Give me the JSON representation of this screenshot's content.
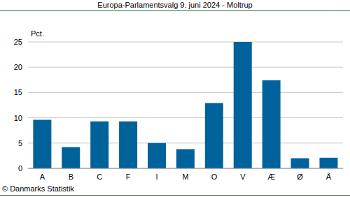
{
  "chart_data": {
    "type": "bar",
    "title": "Europa-Parlamentsvalg 9. juni 2024 - Moltrup",
    "ylabel": "Pct.",
    "source": "© Danmarks Statistik",
    "categories": [
      "A",
      "B",
      "C",
      "F",
      "I",
      "M",
      "O",
      "V",
      "Æ",
      "Ø",
      "Å"
    ],
    "values": [
      9.6,
      4.2,
      9.3,
      9.3,
      5.0,
      3.8,
      12.9,
      25.0,
      17.4,
      2.0,
      2.1
    ],
    "color": "#00629b",
    "ylim": [
      0,
      25
    ],
    "yticks": [
      0,
      5,
      10,
      15,
      20,
      25
    ],
    "grid": true
  }
}
